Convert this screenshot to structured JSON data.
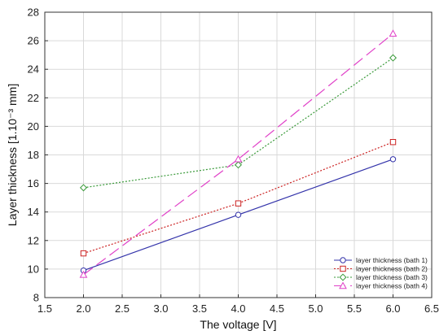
{
  "chart_data": {
    "type": "line",
    "xlabel": "The voltage [V]",
    "ylabel": "Layer thickness [1.10⁻³ mm]",
    "xlim": [
      1.5,
      6.5
    ],
    "ylim": [
      8,
      28
    ],
    "x_ticks": [
      "1.5",
      "2.0",
      "2.5",
      "3.0",
      "3.5",
      "4.0",
      "4.5",
      "5.0",
      "5.5",
      "6.0",
      "6.5"
    ],
    "y_ticks": [
      "8",
      "10",
      "12",
      "14",
      "16",
      "18",
      "20",
      "22",
      "24",
      "26",
      "28"
    ],
    "grid": true,
    "legend_position": "bottom-right",
    "series": [
      {
        "name": "layer thickness (bath 1)",
        "x": [
          2.0,
          4.0,
          6.0
        ],
        "values": [
          9.9,
          13.8,
          17.7
        ],
        "color": "#3333aa",
        "marker": "circle",
        "line_style": "solid"
      },
      {
        "name": "layer thickness (bath 2)",
        "x": [
          2.0,
          4.0,
          6.0
        ],
        "values": [
          11.1,
          14.6,
          18.9
        ],
        "color": "#cc2222",
        "marker": "square",
        "line_style": "dotted"
      },
      {
        "name": "layer thickness (bath 3)",
        "x": [
          2.0,
          4.0,
          6.0
        ],
        "values": [
          15.7,
          17.3,
          24.8
        ],
        "color": "#3a9a3a",
        "marker": "diamond",
        "line_style": "dotted"
      },
      {
        "name": "layer thickness (bath 4)",
        "x": [
          2.0,
          4.0,
          6.0
        ],
        "values": [
          9.6,
          17.7,
          26.5
        ],
        "color": "#e040c8",
        "marker": "triangle",
        "line_style": "dashed"
      }
    ]
  }
}
